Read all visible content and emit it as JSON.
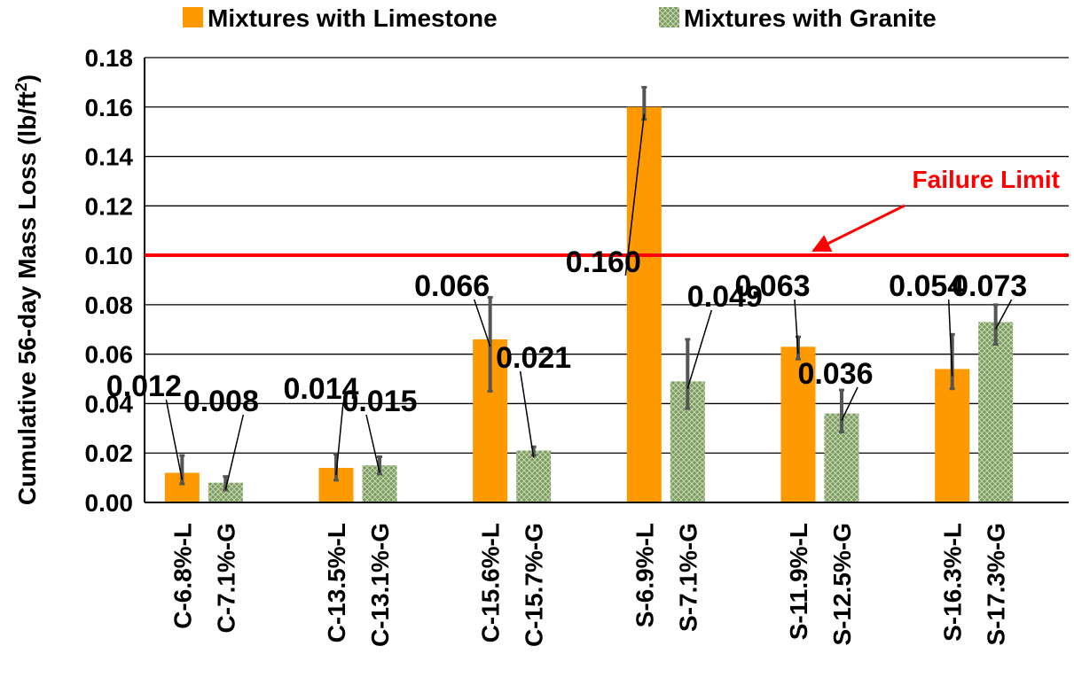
{
  "chart_data": {
    "type": "bar",
    "title": "",
    "xlabel": "",
    "ylabel": "Cumulative 56-day Mass Loss (lb/ft",
    "ylabel_sup": "2",
    "ylabel_end": ")",
    "ylim": [
      0,
      0.18
    ],
    "yticks": [
      "0.00",
      "0.02",
      "0.04",
      "0.06",
      "0.08",
      "0.10",
      "0.12",
      "0.14",
      "0.16",
      "0.18"
    ],
    "grid": true,
    "legend_position": "top",
    "categories": [
      [
        "C-6.8%-L",
        "C-7.1%-G"
      ],
      [
        "C-13.5%-L",
        "C-13.1%-G"
      ],
      [
        "C-15.6%-L",
        "C-15.7%-G"
      ],
      [
        "S-6.9%-L",
        "S-7.1%-G"
      ],
      [
        "S-11.9%-L",
        "S-12.5%-G"
      ],
      [
        "S-16.3%-L",
        "S-17.3%-G"
      ]
    ],
    "series": [
      {
        "name": "Mixtures with Limestone",
        "color": "#FF9900",
        "values": [
          0.012,
          0.014,
          0.066,
          0.16,
          0.063,
          0.054
        ],
        "labels": [
          "0.012",
          "0.014",
          "0.066",
          "0.160",
          "0.063",
          "0.054"
        ],
        "error_low": [
          0.0075,
          0.009,
          0.045,
          0.155,
          0.058,
          0.046
        ],
        "error_high": [
          0.019,
          0.0195,
          0.083,
          0.168,
          0.067,
          0.068
        ]
      },
      {
        "name": "Mixtures with Granite",
        "color": "#7A9A5E",
        "values": [
          0.008,
          0.015,
          0.021,
          0.049,
          0.036,
          0.073
        ],
        "labels": [
          "0.008",
          "0.015",
          "0.021",
          "0.049",
          "0.036",
          "0.073"
        ],
        "error_low": [
          0.005,
          0.0115,
          0.019,
          0.038,
          0.0285,
          0.064
        ],
        "error_high": [
          0.0105,
          0.0185,
          0.0225,
          0.066,
          0.0455,
          0.08
        ]
      }
    ],
    "reference_line": {
      "value": 0.1,
      "label": "Failure Limit",
      "color": "#FF0000"
    }
  }
}
